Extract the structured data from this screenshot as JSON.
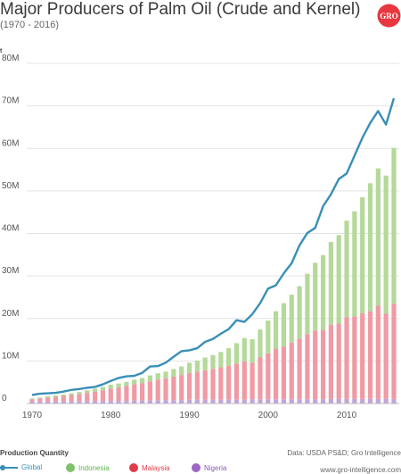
{
  "header": {
    "title": "Major Producers of Palm Oil (Crude and Kernel)",
    "subtitle": "(1970 - 2016)",
    "logo_text": "GRO"
  },
  "footer": {
    "label": "Production Quantity",
    "source": "Data: USDA PS&D; Gro Intelligence",
    "url": "www.gro-intelligence.com"
  },
  "colors": {
    "global": "#3a8fb7",
    "indonesia": "#b4d99a",
    "malaysia": "#ef9aa4",
    "nigeria": "#c2a6d8",
    "logo": "#e8373e"
  },
  "chart_data": {
    "type": "bar",
    "ylabel": "t",
    "ylim": [
      0,
      80000000
    ],
    "yticks": [
      0,
      10000000,
      20000000,
      30000000,
      40000000,
      50000000,
      60000000,
      70000000,
      80000000
    ],
    "ytick_labels": [
      "0",
      "10M",
      "20M",
      "30M",
      "40M",
      "50M",
      "60M",
      "70M",
      "80M"
    ],
    "xticks": [
      1970,
      1980,
      1990,
      2000,
      2010
    ],
    "xtick_labels": [
      "1970",
      "1980",
      "1990",
      "2000",
      "2010"
    ],
    "x": [
      1970,
      1971,
      1972,
      1973,
      1974,
      1975,
      1976,
      1977,
      1978,
      1979,
      1980,
      1981,
      1982,
      1983,
      1984,
      1985,
      1986,
      1987,
      1988,
      1989,
      1990,
      1991,
      1992,
      1993,
      1994,
      1995,
      1996,
      1997,
      1998,
      1999,
      2000,
      2001,
      2002,
      2003,
      2004,
      2005,
      2006,
      2007,
      2008,
      2009,
      2010,
      2011,
      2012,
      2013,
      2014,
      2015,
      2016
    ],
    "series": [
      {
        "name": "Nigeria",
        "kind": "bar",
        "values": [
          0.5,
          0.5,
          0.5,
          0.5,
          0.5,
          0.5,
          0.5,
          0.6,
          0.6,
          0.6,
          0.6,
          0.6,
          0.6,
          0.7,
          0.7,
          0.7,
          0.8,
          0.8,
          0.8,
          0.8,
          0.9,
          0.9,
          0.9,
          0.9,
          0.9,
          0.9,
          0.9,
          0.9,
          1.0,
          1.0,
          1.0,
          1.0,
          1.0,
          1.0,
          1.0,
          1.0,
          1.0,
          1.0,
          1.1,
          1.1,
          1.1,
          1.1,
          1.1,
          1.1,
          1.1,
          1.1,
          1.1
        ]
      },
      {
        "name": "Malaysia",
        "kind": "bar",
        "values": [
          0.5,
          0.7,
          0.9,
          1.1,
          1.3,
          1.5,
          1.7,
          1.9,
          2.2,
          2.5,
          2.9,
          3.2,
          3.5,
          3.8,
          4.1,
          4.5,
          4.8,
          5.1,
          5.5,
          5.9,
          6.3,
          6.6,
          6.9,
          7.2,
          7.6,
          8.0,
          8.5,
          9.0,
          8.6,
          9.9,
          10.8,
          11.9,
          12.4,
          13.3,
          14.2,
          15.3,
          16.1,
          16.3,
          17.4,
          17.7,
          19.2,
          19.4,
          20.1,
          20.6,
          21.9,
          20.0,
          22.4
        ]
      },
      {
        "name": "Indonesia",
        "kind": "bar",
        "values": [
          0.2,
          0.2,
          0.3,
          0.3,
          0.3,
          0.4,
          0.5,
          0.6,
          0.7,
          0.8,
          0.9,
          0.9,
          1.0,
          1.1,
          1.2,
          1.4,
          1.5,
          1.6,
          1.8,
          2.0,
          2.4,
          2.6,
          3.0,
          3.3,
          3.6,
          4.1,
          4.8,
          5.5,
          5.5,
          6.5,
          7.7,
          8.8,
          10.2,
          11.3,
          12.4,
          14.2,
          16.0,
          17.6,
          19.5,
          20.8,
          22.7,
          24.7,
          27.3,
          30.1,
          32.3,
          32.5,
          36.6
        ]
      },
      {
        "name": "Global",
        "kind": "line",
        "values": [
          2.0,
          2.3,
          2.4,
          2.5,
          2.8,
          3.2,
          3.4,
          3.7,
          3.9,
          4.5,
          5.3,
          6.0,
          6.4,
          6.5,
          7.2,
          8.7,
          8.8,
          9.6,
          11.0,
          12.3,
          12.5,
          13.0,
          14.5,
          15.2,
          16.4,
          17.5,
          19.6,
          19.2,
          21.0,
          23.6,
          27.0,
          27.8,
          30.6,
          33.0,
          37.2,
          40.1,
          41.3,
          46.4,
          49.2,
          52.8,
          54.1,
          58.3,
          62.5,
          66.0,
          68.8,
          65.6,
          71.8
        ]
      }
    ]
  }
}
